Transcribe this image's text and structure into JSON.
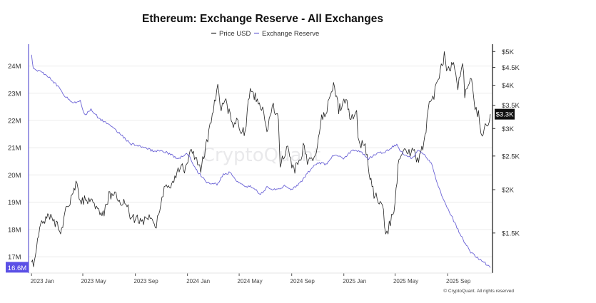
{
  "chart_data": {
    "type": "line",
    "title": "Ethereum: Exchange Reserve - All Exchanges",
    "legend": [
      {
        "name": "Price USD",
        "color": "#222222"
      },
      {
        "name": "Exchange Reserve",
        "color": "#6b63d6"
      }
    ],
    "legend_position": "top-center",
    "watermark": "CryptoQuant",
    "credit": "© CryptoQuant. All rights reserved",
    "x_range": [
      "2022-12-25",
      "2025-12-15"
    ],
    "x_ticks": [
      {
        "date": "2023-01-01",
        "label": "2023 Jan"
      },
      {
        "date": "2023-05-01",
        "label": "2023 May"
      },
      {
        "date": "2023-09-01",
        "label": "2023 Sep"
      },
      {
        "date": "2024-01-01",
        "label": "2024 Jan"
      },
      {
        "date": "2024-05-01",
        "label": "2024 May"
      },
      {
        "date": "2024-09-01",
        "label": "2024 Sep"
      },
      {
        "date": "2025-01-01",
        "label": "2025 Jan"
      },
      {
        "date": "2025-05-01",
        "label": "2025 May"
      },
      {
        "date": "2025-09-01",
        "label": "2025 Sep"
      }
    ],
    "left_axis": {
      "series": "Exchange Reserve",
      "unit": "ETH",
      "range": [
        16.4,
        24.8
      ],
      "ticks": [
        {
          "value": 17,
          "label": "17M"
        },
        {
          "value": 18,
          "label": "18M"
        },
        {
          "value": 19,
          "label": "19M"
        },
        {
          "value": 20,
          "label": "20M"
        },
        {
          "value": 21,
          "label": "21M"
        },
        {
          "value": 22,
          "label": "22M"
        },
        {
          "value": 23,
          "label": "23M"
        },
        {
          "value": 24,
          "label": "24M"
        }
      ],
      "current_label": "16.6M",
      "current_value": 16.6
    },
    "right_axis": {
      "series": "Price USD",
      "scale": "log",
      "range": [
        1150,
        5250
      ],
      "ticks": [
        {
          "value": 1500,
          "label": "$1.5K"
        },
        {
          "value": 2000,
          "label": "$2K"
        },
        {
          "value": 2500,
          "label": "$2.5K"
        },
        {
          "value": 3000,
          "label": "$3K"
        },
        {
          "value": 3500,
          "label": "$3.5K"
        },
        {
          "value": 4000,
          "label": "$4K"
        },
        {
          "value": 4500,
          "label": "$4.5K"
        },
        {
          "value": 5000,
          "label": "$5K"
        }
      ],
      "current_label": "$3.3K",
      "current_value": 3300
    },
    "series": [
      {
        "name": "Price USD",
        "axis": "right",
        "points": [
          [
            "2023-01-01",
            1200
          ],
          [
            "2023-01-10",
            1280
          ],
          [
            "2023-01-20",
            1550
          ],
          [
            "2023-02-01",
            1620
          ],
          [
            "2023-02-15",
            1680
          ],
          [
            "2023-02-28",
            1600
          ],
          [
            "2023-03-10",
            1450
          ],
          [
            "2023-03-20",
            1750
          ],
          [
            "2023-04-01",
            1820
          ],
          [
            "2023-04-15",
            2080
          ],
          [
            "2023-04-25",
            1880
          ],
          [
            "2023-05-10",
            1850
          ],
          [
            "2023-05-25",
            1820
          ],
          [
            "2023-06-10",
            1740
          ],
          [
            "2023-06-20",
            1720
          ],
          [
            "2023-07-01",
            1930
          ],
          [
            "2023-07-15",
            1920
          ],
          [
            "2023-07-31",
            1860
          ],
          [
            "2023-08-15",
            1830
          ],
          [
            "2023-08-20",
            1660
          ],
          [
            "2023-09-01",
            1640
          ],
          [
            "2023-09-15",
            1620
          ],
          [
            "2023-10-01",
            1680
          ],
          [
            "2023-10-20",
            1600
          ],
          [
            "2023-10-31",
            1800
          ],
          [
            "2023-11-10",
            2070
          ],
          [
            "2023-11-25",
            2050
          ],
          [
            "2023-12-10",
            2300
          ],
          [
            "2023-12-25",
            2300
          ],
          [
            "2024-01-10",
            2550
          ],
          [
            "2024-01-20",
            2450
          ],
          [
            "2024-02-01",
            2300
          ],
          [
            "2024-02-15",
            2700
          ],
          [
            "2024-02-28",
            3300
          ],
          [
            "2024-03-12",
            3950
          ],
          [
            "2024-03-20",
            3400
          ],
          [
            "2024-03-31",
            3600
          ],
          [
            "2024-04-15",
            3050
          ],
          [
            "2024-04-25",
            3250
          ],
          [
            "2024-05-01",
            2950
          ],
          [
            "2024-05-15",
            2950
          ],
          [
            "2024-05-27",
            3900
          ],
          [
            "2024-06-10",
            3650
          ],
          [
            "2024-06-25",
            3350
          ],
          [
            "2024-07-05",
            2950
          ],
          [
            "2024-07-20",
            3500
          ],
          [
            "2024-08-01",
            3200
          ],
          [
            "2024-08-05",
            2300
          ],
          [
            "2024-08-20",
            2650
          ],
          [
            "2024-09-06",
            2250
          ],
          [
            "2024-09-20",
            2450
          ],
          [
            "2024-09-28",
            2650
          ],
          [
            "2024-10-10",
            2400
          ],
          [
            "2024-10-31",
            2600
          ],
          [
            "2024-11-10",
            3200
          ],
          [
            "2024-11-25",
            3500
          ],
          [
            "2024-12-08",
            3950
          ],
          [
            "2024-12-20",
            3400
          ],
          [
            "2025-01-06",
            3650
          ],
          [
            "2025-01-15",
            3250
          ],
          [
            "2025-01-31",
            3300
          ],
          [
            "2025-02-03",
            2750
          ],
          [
            "2025-02-20",
            2700
          ],
          [
            "2025-03-01",
            2200
          ],
          [
            "2025-03-15",
            1900
          ],
          [
            "2025-04-01",
            1850
          ],
          [
            "2025-04-09",
            1480
          ],
          [
            "2025-04-20",
            1600
          ],
          [
            "2025-05-01",
            1820
          ],
          [
            "2025-05-10",
            2450
          ],
          [
            "2025-05-31",
            2600
          ],
          [
            "2025-06-15",
            2550
          ],
          [
            "2025-06-25",
            2400
          ],
          [
            "2025-07-10",
            2800
          ],
          [
            "2025-07-20",
            3600
          ],
          [
            "2025-07-31",
            3700
          ],
          [
            "2025-08-10",
            4200
          ],
          [
            "2025-08-24",
            4850
          ],
          [
            "2025-09-01",
            4350
          ],
          [
            "2025-09-15",
            4600
          ],
          [
            "2025-09-25",
            4000
          ],
          [
            "2025-10-06",
            4700
          ],
          [
            "2025-10-11",
            3800
          ],
          [
            "2025-10-27",
            4150
          ],
          [
            "2025-11-04",
            3500
          ],
          [
            "2025-11-15",
            3200
          ],
          [
            "2025-11-21",
            2800
          ],
          [
            "2025-11-28",
            3000
          ],
          [
            "2025-12-05",
            3100
          ],
          [
            "2025-12-10",
            3300
          ]
        ]
      },
      {
        "name": "Exchange Reserve",
        "axis": "left",
        "points": [
          [
            "2023-01-01",
            24.4
          ],
          [
            "2023-01-05",
            23.95
          ],
          [
            "2023-01-20",
            23.8
          ],
          [
            "2023-02-10",
            23.6
          ],
          [
            "2023-03-01",
            23.3
          ],
          [
            "2023-03-20",
            22.9
          ],
          [
            "2023-04-10",
            22.65
          ],
          [
            "2023-04-25",
            22.75
          ],
          [
            "2023-05-05",
            22.2
          ],
          [
            "2023-05-20",
            22.4
          ],
          [
            "2023-06-10",
            22.05
          ],
          [
            "2023-07-01",
            21.85
          ],
          [
            "2023-07-25",
            21.55
          ],
          [
            "2023-08-20",
            21.15
          ],
          [
            "2023-09-10",
            21.05
          ],
          [
            "2023-10-10",
            20.9
          ],
          [
            "2023-11-10",
            20.85
          ],
          [
            "2023-12-10",
            20.6
          ],
          [
            "2024-01-01",
            20.8
          ],
          [
            "2024-01-25",
            20.1
          ],
          [
            "2024-02-15",
            19.75
          ],
          [
            "2024-03-10",
            19.65
          ],
          [
            "2024-03-25",
            20.0
          ],
          [
            "2024-04-10",
            20.1
          ],
          [
            "2024-04-25",
            19.75
          ],
          [
            "2024-05-15",
            19.6
          ],
          [
            "2024-06-01",
            19.55
          ],
          [
            "2024-06-20",
            19.3
          ],
          [
            "2024-07-05",
            19.55
          ],
          [
            "2024-07-25",
            19.45
          ],
          [
            "2024-08-15",
            19.6
          ],
          [
            "2024-09-01",
            19.45
          ],
          [
            "2024-09-20",
            19.7
          ],
          [
            "2024-10-10",
            20.1
          ],
          [
            "2024-10-31",
            20.45
          ],
          [
            "2024-11-20",
            20.4
          ],
          [
            "2024-12-10",
            20.75
          ],
          [
            "2024-12-31",
            20.6
          ],
          [
            "2025-01-20",
            20.9
          ],
          [
            "2025-02-10",
            20.85
          ],
          [
            "2025-02-28",
            20.6
          ],
          [
            "2025-03-20",
            20.8
          ],
          [
            "2025-04-10",
            20.85
          ],
          [
            "2025-04-25",
            21.05
          ],
          [
            "2025-05-05",
            21.1
          ],
          [
            "2025-05-20",
            20.75
          ],
          [
            "2025-06-10",
            20.6
          ],
          [
            "2025-06-25",
            20.95
          ],
          [
            "2025-07-10",
            20.7
          ],
          [
            "2025-07-25",
            20.4
          ],
          [
            "2025-08-10",
            19.6
          ],
          [
            "2025-08-25",
            19.0
          ],
          [
            "2025-09-10",
            18.5
          ],
          [
            "2025-09-25",
            18.0
          ],
          [
            "2025-10-10",
            17.55
          ],
          [
            "2025-10-25",
            17.15
          ],
          [
            "2025-11-10",
            16.95
          ],
          [
            "2025-11-25",
            16.8
          ],
          [
            "2025-12-10",
            16.6
          ]
        ]
      }
    ]
  }
}
